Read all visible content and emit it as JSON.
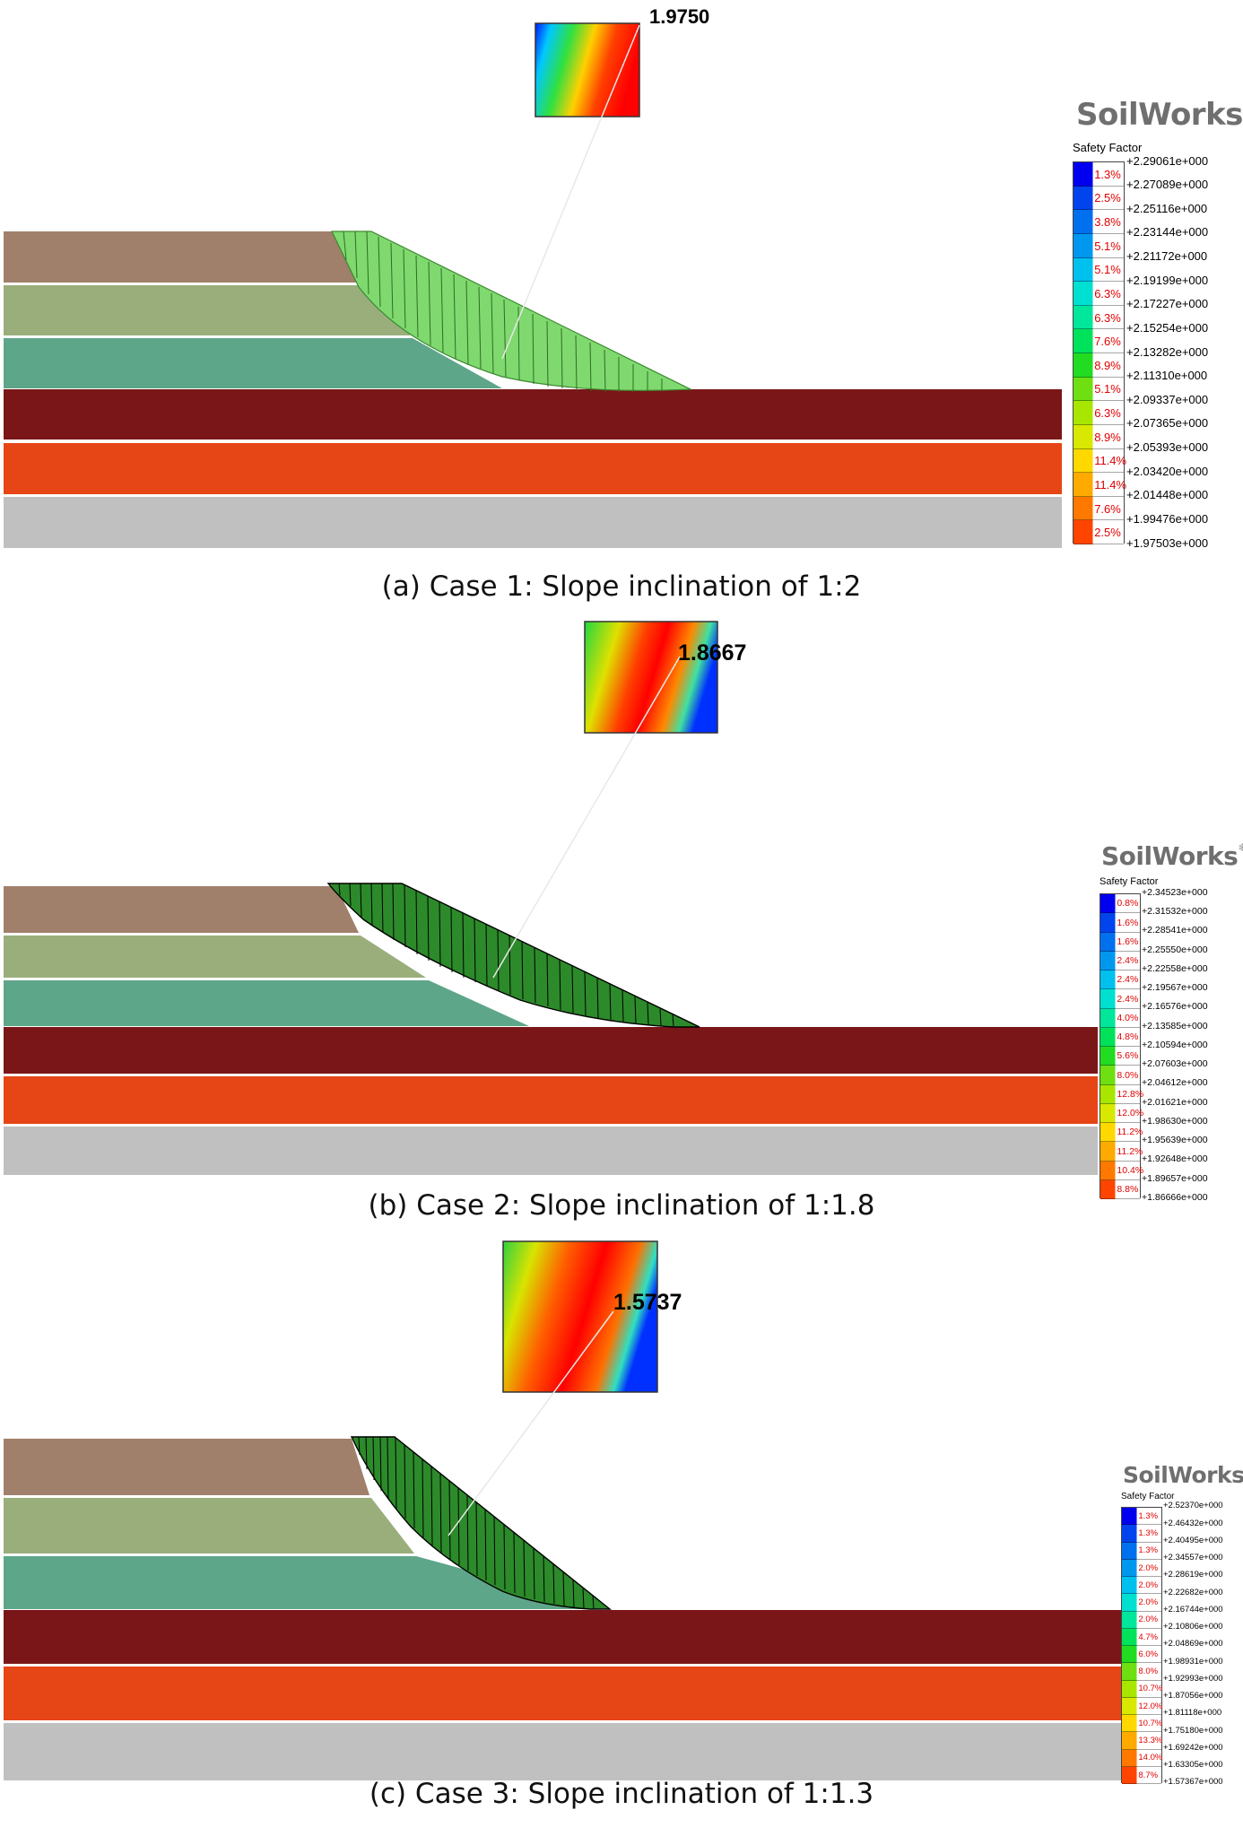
{
  "colors": {
    "layer1": "#a0806a",
    "layer2": "#9aae7c",
    "layer3": "#5ea689",
    "layer4": "#7a1618",
    "layer5": "#e64516",
    "layer6": "#c0c0c0",
    "slice_case1": "#7fd96f",
    "slice_dark": "#2c8a2a"
  },
  "scale_colors": [
    "#0000ee",
    "#0044ee",
    "#0070ee",
    "#0098ee",
    "#00c0ee",
    "#00e0d0",
    "#00e69a",
    "#00e25a",
    "#22dc22",
    "#6ee012",
    "#a8e600",
    "#d8e800",
    "#ffd800",
    "#ffaa00",
    "#ff7800",
    "#ff4400",
    "#ff0000"
  ],
  "panels": [
    {
      "caption": "(a) Case 1: Slope inclination of 1:2",
      "fs_label": "1.9750",
      "logo": "SoilWorks",
      "legend_title": "Safety Factor",
      "legend_values": [
        "+2.29061e+000",
        "+2.27089e+000",
        "+2.25116e+000",
        "+2.23144e+000",
        "+2.21172e+000",
        "+2.19199e+000",
        "+2.17227e+000",
        "+2.15254e+000",
        "+2.13282e+000",
        "+2.11310e+000",
        "+2.09337e+000",
        "+2.07365e+000",
        "+2.05393e+000",
        "+2.03420e+000",
        "+2.01448e+000",
        "+1.99476e+000",
        "+1.97503e+000"
      ],
      "legend_percents": [
        "1.3%",
        "2.5%",
        "3.8%",
        "5.1%",
        "5.1%",
        "6.3%",
        "6.3%",
        "7.6%",
        "8.9%",
        "5.1%",
        "6.3%",
        "8.9%",
        "11.4%",
        "11.4%",
        "7.6%",
        "2.5%"
      ]
    },
    {
      "caption": "(b) Case 2: Slope inclination of 1:1.8",
      "fs_label": "1.8667",
      "logo": "SoilWorks",
      "legend_title": "Safety Factor",
      "legend_values": [
        "+2.34523e+000",
        "+2.31532e+000",
        "+2.28541e+000",
        "+2.25550e+000",
        "+2.22558e+000",
        "+2.19567e+000",
        "+2.16576e+000",
        "+2.13585e+000",
        "+2.10594e+000",
        "+2.07603e+000",
        "+2.04612e+000",
        "+2.01621e+000",
        "+1.98630e+000",
        "+1.95639e+000",
        "+1.92648e+000",
        "+1.89657e+000",
        "+1.86666e+000"
      ],
      "legend_percents": [
        "0.8%",
        "1.6%",
        "1.6%",
        "2.4%",
        "2.4%",
        "2.4%",
        "4.0%",
        "4.8%",
        "5.6%",
        "8.0%",
        "12.8%",
        "12.0%",
        "11.2%",
        "11.2%",
        "10.4%",
        "8.8%"
      ]
    },
    {
      "caption": "(c) Case 3: Slope inclination of 1:1.3",
      "fs_label": "1.5737",
      "logo": "SoilWorks",
      "legend_title": "Safety Factor",
      "legend_values": [
        "+2.52370e+000",
        "+2.46432e+000",
        "+2.40495e+000",
        "+2.34557e+000",
        "+2.28619e+000",
        "+2.22682e+000",
        "+2.16744e+000",
        "+2.10806e+000",
        "+2.04869e+000",
        "+1.98931e+000",
        "+1.92993e+000",
        "+1.87056e+000",
        "+1.81118e+000",
        "+1.75180e+000",
        "+1.69242e+000",
        "+1.63305e+000",
        "+1.57367e+000"
      ],
      "legend_percents": [
        "1.3%",
        "1.3%",
        "1.3%",
        "2.0%",
        "2.0%",
        "2.0%",
        "2.0%",
        "4.7%",
        "6.0%",
        "8.0%",
        "10.7%",
        "12.0%",
        "10.7%",
        "13.3%",
        "14.0%",
        "8.7%"
      ]
    }
  ]
}
